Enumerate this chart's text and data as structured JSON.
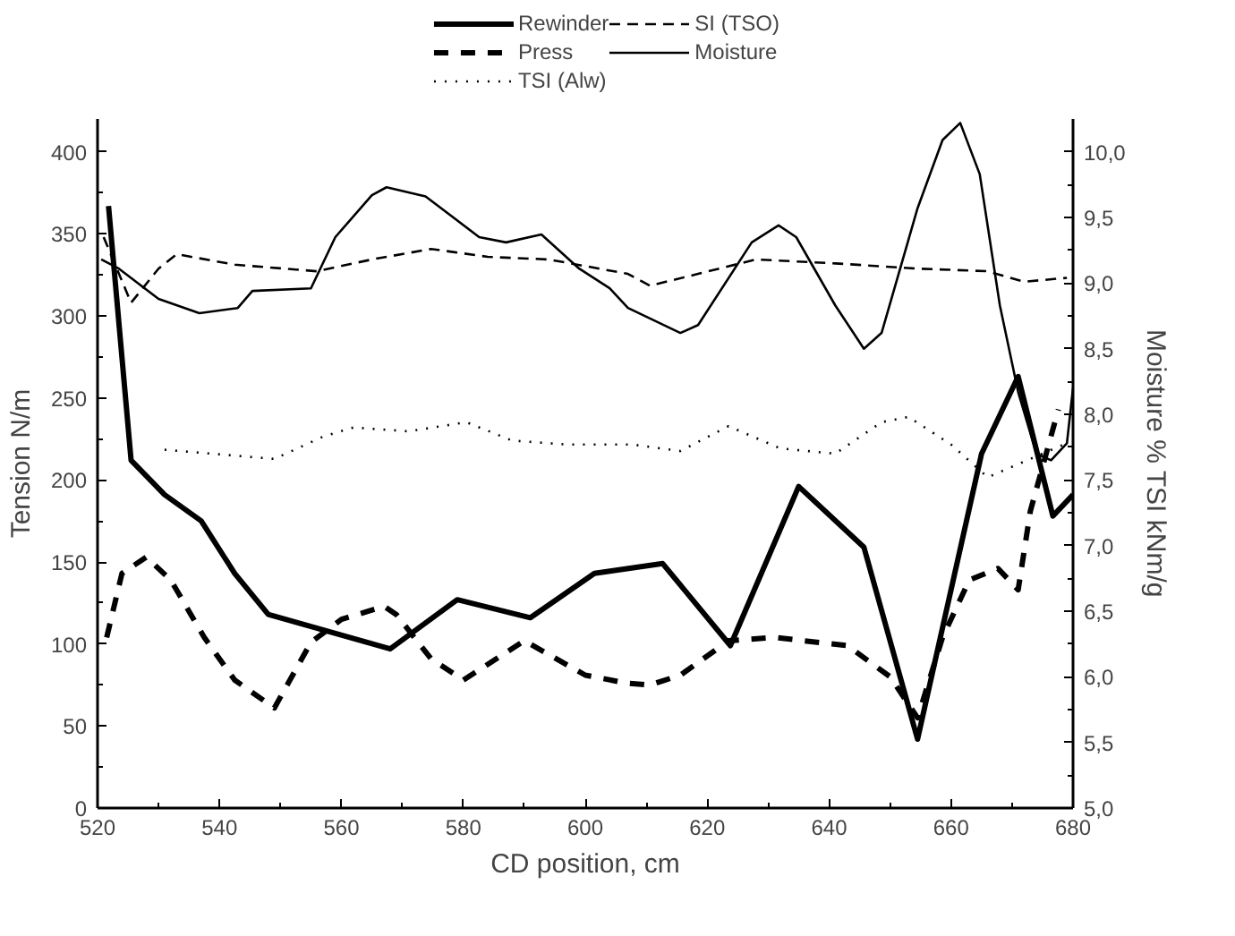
{
  "chart_data": {
    "type": "line",
    "xlabel": "CD position, cm",
    "ylabel": "Tension N/m",
    "y2label": "Moisture % TSI kNm/g",
    "xlim": [
      520,
      680
    ],
    "xticks": [
      520,
      540,
      560,
      580,
      600,
      620,
      640,
      660,
      680
    ],
    "ylim": [
      0,
      420
    ],
    "yticks": [
      0,
      50,
      100,
      150,
      200,
      250,
      300,
      350,
      400
    ],
    "y2lim": [
      5,
      10.25
    ],
    "y2ticks": [
      {
        "value": 5,
        "label": "5,0"
      },
      {
        "value": 5.5,
        "label": "5,5"
      },
      {
        "value": 6,
        "label": "6,0"
      },
      {
        "value": 6.5,
        "label": "6,5"
      },
      {
        "value": 7,
        "label": "7,0"
      },
      {
        "value": 7.5,
        "label": "7,5"
      },
      {
        "value": 8,
        "label": "8,0"
      },
      {
        "value": 8.5,
        "label": "8,5"
      },
      {
        "value": 9,
        "label": "9,0"
      },
      {
        "value": 9.5,
        "label": "9,5"
      },
      {
        "value": 10,
        "label": "10,0"
      }
    ],
    "grid": false,
    "legend": "top",
    "marker": "none",
    "series": [
      {
        "name": "Rewinder",
        "color": "#000000",
        "line_style": "solid",
        "axis": "y",
        "x": [
          521.8,
          525.5,
          531,
          537,
          542.5,
          548,
          568,
          579,
          591,
          601.5,
          612.7,
          623.8,
          635,
          645.7,
          654.5,
          665,
          671,
          676.7,
          680
        ],
        "values": [
          367,
          212,
          191,
          175,
          143,
          118,
          97,
          127,
          116,
          143,
          149,
          99,
          196,
          159,
          42,
          216,
          263,
          178,
          191
        ]
      },
      {
        "name": "Press",
        "color": "#000000",
        "line_style": "dashed",
        "axis": "y",
        "x": [
          521.5,
          524,
          528,
          532,
          537.5,
          542.5,
          549,
          555,
          560,
          567,
          569,
          574.7,
          580,
          590,
          600,
          607,
          610.6,
          615.6,
          623.5,
          631,
          643,
          650,
          654.5,
          658.6,
          663,
          667.7,
          671,
          673,
          675.6,
          677.6
        ],
        "values": [
          104,
          143,
          153,
          139,
          104,
          78,
          61,
          101,
          115,
          123,
          118,
          91,
          78,
          102,
          81,
          76,
          75,
          81,
          102,
          104,
          99,
          80,
          55,
          104,
          139,
          146,
          133,
          181,
          216,
          243
        ]
      },
      {
        "name": "TSI (Alw)",
        "color": "#000000",
        "line_style": "dotted",
        "axis": "y2",
        "x": [
          531,
          549,
          557,
          562,
          571,
          580.5,
          588,
          597,
          607.7,
          615.6,
          623.5,
          632,
          641,
          648.6,
          653,
          660,
          666,
          672,
          679
        ],
        "values": [
          7.73,
          7.66,
          7.83,
          7.9,
          7.87,
          7.94,
          7.8,
          7.77,
          7.77,
          7.72,
          7.91,
          7.74,
          7.7,
          7.94,
          7.98,
          7.77,
          7.52,
          7.64,
          7.78
        ]
      },
      {
        "name": "SI (TSO)",
        "color": "#000000",
        "line_style": "dashed",
        "axis": "y2",
        "x": [
          521,
          525.5,
          530,
          533,
          542.5,
          556,
          565,
          574.7,
          584,
          594,
          607,
          610.6,
          618.5,
          628,
          641,
          654.5,
          666,
          672,
          679
        ],
        "values": [
          9.35,
          8.85,
          9.11,
          9.22,
          9.14,
          9.09,
          9.18,
          9.26,
          9.2,
          9.18,
          9.07,
          8.98,
          9.07,
          9.18,
          9.15,
          9.11,
          9.09,
          9.01,
          9.04
        ]
      },
      {
        "name": "Moisture",
        "color": "#000000",
        "line_style": "solid",
        "axis": "y2",
        "x": [
          520.6,
          523.5,
          530,
          536.7,
          543,
          545.4,
          555,
          559,
          565,
          567.4,
          573.8,
          582.6,
          587,
          592.8,
          599,
          604,
          607,
          615.6,
          618.5,
          627.3,
          631.7,
          634.6,
          641,
          645.7,
          648.6,
          654.5,
          658.6,
          661.5,
          664.7,
          668,
          671,
          674,
          676.4,
          679,
          680
        ],
        "values": [
          9.18,
          9.11,
          8.88,
          8.77,
          8.81,
          8.94,
          8.96,
          9.35,
          9.67,
          9.73,
          9.66,
          9.35,
          9.31,
          9.37,
          9.11,
          8.96,
          8.81,
          8.62,
          8.68,
          9.31,
          9.44,
          9.35,
          8.83,
          8.5,
          8.62,
          9.57,
          10.09,
          10.22,
          9.83,
          8.83,
          8.17,
          7.7,
          7.65,
          7.78,
          8.2
        ]
      }
    ]
  }
}
